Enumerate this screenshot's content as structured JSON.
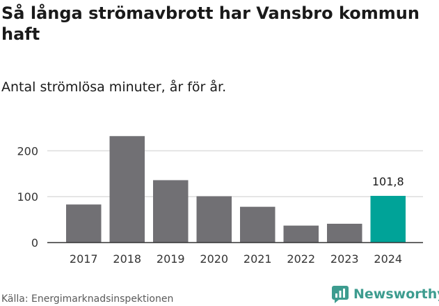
{
  "header": {
    "title": "Så långa strömavbrott har Vansbro kommun haft",
    "subtitle": "Antal strömlösa minuter, år för år."
  },
  "footer": {
    "source": "Källa: Energimarknadsinspektionen",
    "brand": "Newsworthy"
  },
  "colors": {
    "bar": "#717074",
    "highlight": "#00a398",
    "grid": "#dddddd",
    "brand": "#3d9c8f"
  },
  "chart_data": {
    "type": "bar",
    "categories": [
      "2017",
      "2018",
      "2019",
      "2020",
      "2021",
      "2022",
      "2023",
      "2024"
    ],
    "values": [
      83,
      232,
      136,
      101,
      78,
      37,
      41,
      101.8
    ],
    "ylim": [
      0,
      240
    ],
    "yticks": [
      0,
      100,
      200
    ],
    "grid": true,
    "highlight_index": 7,
    "annotations": [
      {
        "category": "2024",
        "text": "101,8"
      }
    ]
  }
}
